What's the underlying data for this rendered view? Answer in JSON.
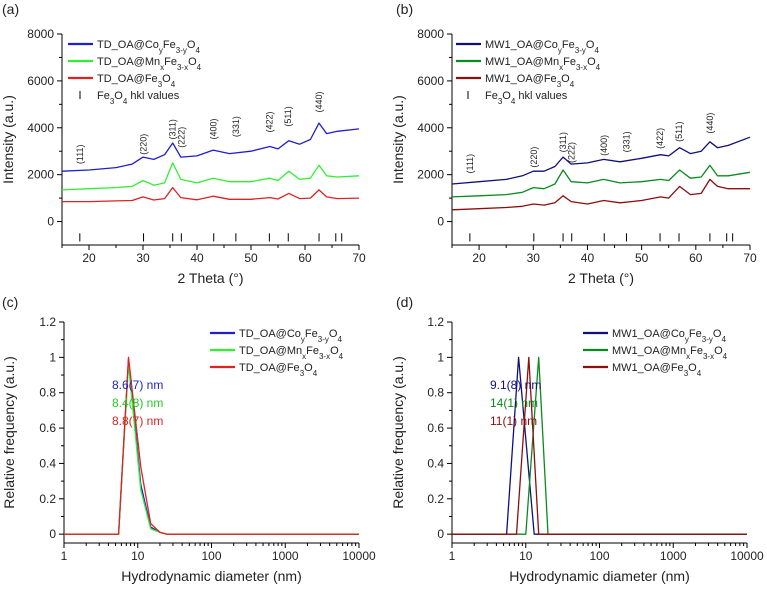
{
  "chart_data": [
    {
      "type": "line",
      "panel": "(a)",
      "xlabel": "2 Theta (°)",
      "ylabel": "Intensity (a.u.)",
      "xlim": [
        15,
        70
      ],
      "ylim": [
        -1000,
        8000
      ],
      "xticks": [
        "20",
        "30",
        "40",
        "50",
        "60",
        "70"
      ],
      "xtick_values": [
        20,
        30,
        40,
        50,
        60,
        70
      ],
      "yticks": [
        "0",
        "2000",
        "4000",
        "6000",
        "8000"
      ],
      "ytick_values": [
        0,
        2000,
        4000,
        6000,
        8000
      ],
      "legend_position": "top-left",
      "legend_entries": [
        {
          "name": "TD_OA@CoyFe3-yO4",
          "base": "TD_OA@Co",
          "s1": "y",
          "m1": "Fe",
          "s2": "3-y",
          "m2": "O",
          "s3": "4",
          "color": "#1f1fd0"
        },
        {
          "name": "TD_OA@MnxFe3-xO4",
          "base": "TD_OA@Mn",
          "s1": "x",
          "m1": "Fe",
          "s2": "3-x",
          "m2": "O",
          "s3": "4",
          "color": "#33ee33"
        },
        {
          "name": "TD_OA@Fe3O4",
          "base": "TD_OA@Fe",
          "s1": "3",
          "m1": "O",
          "s2": "4",
          "m2": "",
          "s3": "",
          "color": "#dd2222"
        },
        {
          "name": "Fe3O4 hkl values",
          "base": "Fe",
          "s1": "3",
          "m1": "O",
          "s2": "4",
          "m2": " hkl values",
          "s3": "",
          "color": "#000000"
        }
      ],
      "series": [
        {
          "name": "TD_OA@CoyFe3-yO4",
          "color": "#1f1fd0",
          "x": [
            15,
            20,
            25,
            28,
            30,
            32,
            34,
            35.5,
            37,
            40,
            43,
            46,
            50,
            53.5,
            55,
            57,
            59,
            61,
            62.6,
            64,
            66,
            70
          ],
          "y": [
            2150,
            2200,
            2300,
            2450,
            2750,
            2650,
            2850,
            3350,
            2750,
            2800,
            3050,
            2900,
            3000,
            3200,
            3100,
            3450,
            3300,
            3500,
            4200,
            3750,
            3850,
            3950
          ]
        },
        {
          "name": "TD_OA@MnxFe3-xO4",
          "color": "#33ee33",
          "x": [
            15,
            20,
            25,
            28,
            30,
            32,
            34,
            35.5,
            37,
            40,
            43,
            46,
            50,
            53.5,
            55,
            57,
            59,
            61,
            62.6,
            64,
            66,
            70
          ],
          "y": [
            1350,
            1400,
            1450,
            1500,
            1750,
            1550,
            1650,
            2500,
            1800,
            1650,
            1850,
            1700,
            1700,
            1850,
            1750,
            2150,
            1800,
            1850,
            2400,
            1950,
            1900,
            1950
          ]
        },
        {
          "name": "TD_OA@Fe3O4",
          "color": "#dd2222",
          "x": [
            15,
            20,
            25,
            28,
            30,
            32,
            34,
            35.5,
            37,
            40,
            43,
            46,
            50,
            53.5,
            55,
            57,
            59,
            61,
            62.6,
            64,
            66,
            70
          ],
          "y": [
            850,
            850,
            880,
            900,
            1050,
            920,
            980,
            1450,
            1020,
            930,
            1080,
            950,
            950,
            1020,
            960,
            1200,
            980,
            1000,
            1350,
            1050,
            980,
            1000
          ]
        }
      ],
      "hkl_labels": [
        {
          "text": "(111)",
          "x": 18.3,
          "y": 2450
        },
        {
          "text": "(220)",
          "x": 30.1,
          "y": 2850
        },
        {
          "text": "(311)",
          "x": 35.5,
          "y": 3500
        },
        {
          "text": "(222)",
          "x": 37.1,
          "y": 3150
        },
        {
          "text": "(400)",
          "x": 43.1,
          "y": 3500
        },
        {
          "text": "(331)",
          "x": 47.2,
          "y": 3600
        },
        {
          "text": "(422)",
          "x": 53.4,
          "y": 3800
        },
        {
          "text": "(511)",
          "x": 56.9,
          "y": 4050
        },
        {
          "text": "(440)",
          "x": 62.6,
          "y": 4650
        }
      ],
      "hkl_ticks": [
        18.3,
        30.1,
        35.5,
        37.1,
        43.1,
        47.2,
        53.4,
        56.9,
        62.6,
        65.7,
        66.8
      ]
    },
    {
      "type": "line",
      "panel": "(b)",
      "xlabel": "2 Theta (°)",
      "ylabel": "Intensity (a.u.)",
      "xlim": [
        15,
        70
      ],
      "ylim": [
        -1000,
        8000
      ],
      "xticks": [
        "20",
        "30",
        "40",
        "50",
        "60",
        "70"
      ],
      "xtick_values": [
        20,
        30,
        40,
        50,
        60,
        70
      ],
      "yticks": [
        "0",
        "2000",
        "4000",
        "6000",
        "8000"
      ],
      "ytick_values": [
        0,
        2000,
        4000,
        6000,
        8000
      ],
      "legend_position": "top-left",
      "legend_entries": [
        {
          "name": "MW1_OA@CoyFe3-yO4",
          "base": "MW1_OA@Co",
          "s1": "y",
          "m1": "Fe",
          "s2": "3-y",
          "m2": "O",
          "s3": "4",
          "color": "#10107a"
        },
        {
          "name": "MW1_OA@MnxFe3-xO4",
          "base": "MW1_OA@Mn",
          "s1": "x",
          "m1": "Fe",
          "s2": "3-x",
          "m2": "O",
          "s3": "4",
          "color": "#0b8a1f"
        },
        {
          "name": "MW1_OA@Fe3O4",
          "base": "MW1_OA@Fe",
          "s1": "3",
          "m1": "O",
          "s2": "4",
          "m2": "",
          "s3": "",
          "color": "#8b0f0f"
        },
        {
          "name": "Fe3O4 hkl values",
          "base": "Fe",
          "s1": "3",
          "m1": "O",
          "s2": "4",
          "m2": " hkl values",
          "s3": "",
          "color": "#000000"
        }
      ],
      "series": [
        {
          "name": "MW1_OA@CoyFe3-yO4",
          "color": "#10107a",
          "x": [
            15,
            20,
            25,
            28,
            30,
            32,
            34,
            35.5,
            37,
            40,
            43,
            46,
            50,
            53.5,
            55,
            57,
            59,
            61,
            62.6,
            64,
            66,
            70
          ],
          "y": [
            1600,
            1700,
            1800,
            1950,
            2150,
            2150,
            2350,
            2750,
            2450,
            2500,
            2650,
            2550,
            2700,
            2850,
            2800,
            3150,
            2900,
            3000,
            3400,
            3150,
            3250,
            3600
          ]
        },
        {
          "name": "MW1_OA@MnxFe3-xO4",
          "color": "#0b8a1f",
          "x": [
            15,
            20,
            25,
            28,
            30,
            32,
            34,
            35.5,
            37,
            40,
            43,
            46,
            50,
            53.5,
            55,
            57,
            59,
            61,
            62.6,
            64,
            66,
            70
          ],
          "y": [
            1050,
            1100,
            1150,
            1250,
            1450,
            1400,
            1600,
            2200,
            1700,
            1650,
            1800,
            1650,
            1700,
            1800,
            1750,
            2200,
            1850,
            1900,
            2400,
            1950,
            1950,
            2100
          ]
        },
        {
          "name": "MW1_OA@Fe3O4",
          "color": "#8b0f0f",
          "x": [
            15,
            20,
            25,
            28,
            30,
            32,
            34,
            35.5,
            37,
            40,
            43,
            46,
            50,
            53.5,
            55,
            57,
            59,
            61,
            62.6,
            64,
            66,
            70
          ],
          "y": [
            500,
            550,
            600,
            650,
            750,
            700,
            800,
            1100,
            850,
            750,
            900,
            800,
            900,
            1050,
            1000,
            1500,
            1150,
            1200,
            1800,
            1500,
            1400,
            1400
          ]
        }
      ],
      "hkl_labels": [
        {
          "text": "(111)",
          "x": 18.3,
          "y": 2050
        },
        {
          "text": "(220)",
          "x": 30.1,
          "y": 2300
        },
        {
          "text": "(311)",
          "x": 35.5,
          "y": 2950
        },
        {
          "text": "(222)",
          "x": 37.1,
          "y": 2500
        },
        {
          "text": "(400)",
          "x": 43.1,
          "y": 2800
        },
        {
          "text": "(331)",
          "x": 47.2,
          "y": 2950
        },
        {
          "text": "(422)",
          "x": 53.4,
          "y": 3100
        },
        {
          "text": "(511)",
          "x": 56.9,
          "y": 3400
        },
        {
          "text": "(440)",
          "x": 62.6,
          "y": 3750
        }
      ],
      "hkl_ticks": [
        18.3,
        30.1,
        35.5,
        37.1,
        43.1,
        47.2,
        53.4,
        56.9,
        62.6,
        65.7,
        66.8
      ]
    },
    {
      "type": "line",
      "panel": "(c)",
      "xscale": "log",
      "xlabel": "Hydrodynamic diameter (nm)",
      "ylabel": "Relative frequency (a.u.)",
      "xlim": [
        1,
        10000
      ],
      "ylim": [
        -0.05,
        1.2
      ],
      "xticks": [
        "1",
        "10",
        "100",
        "1000",
        "10000"
      ],
      "xtick_values": [
        1,
        10,
        100,
        1000,
        10000
      ],
      "yticks": [
        "0",
        "0.2",
        "0.4",
        "0.6",
        "0.8",
        "1",
        "1.2"
      ],
      "ytick_values": [
        0,
        0.2,
        0.4,
        0.6,
        0.8,
        1,
        1.2
      ],
      "legend_position": "top-right",
      "legend_entries": [
        {
          "name": "TD_OA@CoyFe3-yO4",
          "base": "TD_OA@Co",
          "s1": "y",
          "m1": "Fe",
          "s2": "3-y",
          "m2": "O",
          "s3": "4",
          "color": "#1f1fd0"
        },
        {
          "name": "TD_OA@MnxFe3-xO4",
          "base": "TD_OA@Mn",
          "s1": "x",
          "m1": "Fe",
          "s2": "3-x",
          "m2": "O",
          "s3": "4",
          "color": "#33ee33"
        },
        {
          "name": "TD_OA@Fe3O4",
          "base": "TD_OA@Fe",
          "s1": "3",
          "m1": "O",
          "s2": "4",
          "m2": "",
          "s3": "",
          "color": "#dd2222"
        }
      ],
      "series": [
        {
          "name": "TD_OA@CoyFe3-yO4",
          "color": "#1f1fd0",
          "x": [
            1,
            5.5,
            7.5,
            11,
            15,
            20,
            25,
            10000
          ],
          "y": [
            0,
            0,
            0.99,
            0.28,
            0.04,
            0.01,
            0,
            0
          ]
        },
        {
          "name": "TD_OA@MnxFe3-xO4",
          "color": "#33ee33",
          "x": [
            1,
            5.5,
            7.5,
            11,
            15,
            20,
            25,
            10000
          ],
          "y": [
            0,
            0,
            0.96,
            0.25,
            0.03,
            0.01,
            0,
            0
          ]
        },
        {
          "name": "TD_OA@Fe3O4",
          "color": "#dd2222",
          "x": [
            1,
            5.5,
            7.5,
            11,
            15,
            20,
            25,
            10000
          ],
          "y": [
            0,
            0,
            1.0,
            0.38,
            0.06,
            0.01,
            0,
            0
          ]
        }
      ],
      "annotations": [
        {
          "text": "8.6(7) nm",
          "color": "#1f1fd0"
        },
        {
          "text": "8.4(8) nm",
          "color": "#22cc22"
        },
        {
          "text": "8.8(7) nm",
          "color": "#dd2222"
        }
      ]
    },
    {
      "type": "line",
      "panel": "(d)",
      "xscale": "log",
      "xlabel": "Hydrodynamic diameter (nm)",
      "ylabel": "Relative frequency (a.u.)",
      "xlim": [
        1,
        10000
      ],
      "ylim": [
        -0.05,
        1.2
      ],
      "xticks": [
        "1",
        "10",
        "100",
        "1000",
        "10000"
      ],
      "xtick_values": [
        1,
        10,
        100,
        1000,
        10000
      ],
      "yticks": [
        "0",
        "0.2",
        "0.4",
        "0.6",
        "0.8",
        "1",
        "1.2"
      ],
      "ytick_values": [
        0,
        0.2,
        0.4,
        0.6,
        0.8,
        1,
        1.2
      ],
      "legend_position": "top-right",
      "legend_entries": [
        {
          "name": "MW1_OA@CoyFe3-yO4",
          "base": "MW1_OA@Co",
          "s1": "y",
          "m1": "Fe",
          "s2": "3-y",
          "m2": "O",
          "s3": "4",
          "color": "#10107a"
        },
        {
          "name": "MW1_OA@MnxFe3-xO4",
          "base": "MW1_OA@Mn",
          "s1": "x",
          "m1": "Fe",
          "s2": "3-x",
          "m2": "O",
          "s3": "4",
          "color": "#0b8a1f"
        },
        {
          "name": "MW1_OA@Fe3O4",
          "base": "MW1_OA@Fe",
          "s1": "3",
          "m1": "O",
          "s2": "4",
          "m2": "",
          "s3": "",
          "color": "#8b0f0f"
        }
      ],
      "series": [
        {
          "name": "MW1_OA@CoyFe3-yO4",
          "color": "#10107a",
          "x": [
            1,
            5.5,
            8,
            13,
            10000
          ],
          "y": [
            0,
            0,
            1.0,
            0,
            0
          ]
        },
        {
          "name": "MW1_OA@MnxFe3-xO4",
          "color": "#0b8a1f",
          "x": [
            1,
            10,
            15,
            20,
            10000
          ],
          "y": [
            0,
            0,
            1.0,
            0,
            0
          ]
        },
        {
          "name": "MW1_OA@Fe3O4",
          "color": "#8b0f0f",
          "x": [
            1,
            7.5,
            11,
            15,
            10000
          ],
          "y": [
            0,
            0,
            1.0,
            0,
            0
          ]
        }
      ],
      "annotations": [
        {
          "text": "9.1(8) nm",
          "color": "#10107a"
        },
        {
          "text": "14(1) nm",
          "color": "#0b8a1f"
        },
        {
          "text": "11(1) nm",
          "color": "#8b0f0f"
        }
      ]
    }
  ]
}
